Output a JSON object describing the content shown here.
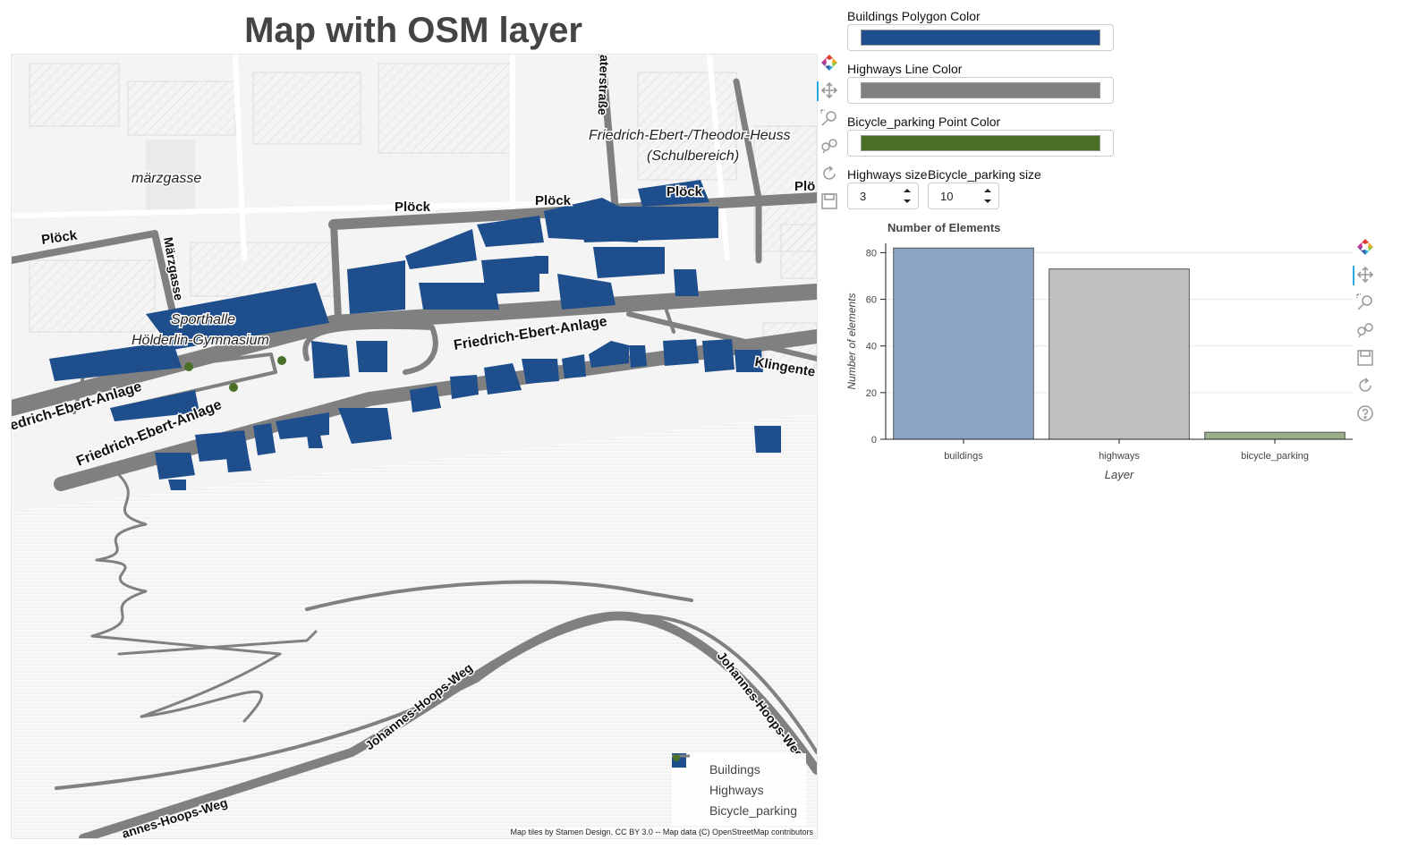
{
  "map": {
    "title": "Map with OSM layer",
    "attribution": "Map tiles by Stamen Design, CC BY 3.0 -- Map data (C) OpenStreetMap contributors",
    "street_labels": {
      "plock1": "Plöck",
      "plock2": "Plöck",
      "plock3": "Plöck",
      "plock4": "Plöck",
      "plock5": "Plö",
      "marzgasse_area": "märzgasse",
      "marzgasse_street": "Märzgasse",
      "theaterstrasse": "aterstraße",
      "fe_theodor": "Friedrich-Ebert-/Theodor-Heuss",
      "schulbereich": "(Schulbereich)",
      "sporthalle": "Sporthalle",
      "hoelderlin": "Hölderlin-Gymnasium",
      "fe_anlage_main": "Friedrich-Ebert-Anlage",
      "fe_anlage_left": "edrich-Ebert-Anlage",
      "fe_anlage_lower": "Friedrich-Ebert-Anlage",
      "klingente": "Klingente",
      "jhw1": "Johannes-Hoops-Weg",
      "jhw2": "Johannes-Hoops-Weg",
      "jhw3": "annes-Hoops-Weg"
    },
    "legend": [
      {
        "label": "Buildings",
        "color": "#1f4e8c",
        "icon": "square-icon"
      },
      {
        "label": "Highways",
        "color": "#808080",
        "icon": "line-icon"
      },
      {
        "label": "Bicycle_parking",
        "color": "#4a7028",
        "icon": "dot-icon"
      }
    ]
  },
  "toolbar_icons": [
    "bokeh-logo-icon",
    "pan-icon",
    "box-zoom-icon",
    "wheel-zoom-icon",
    "reset-icon",
    "save-icon"
  ],
  "chart_toolbar_icons": [
    "bokeh-logo-icon",
    "pan-icon",
    "box-zoom-icon",
    "wheel-zoom-icon",
    "save-icon",
    "reset-icon",
    "help-icon"
  ],
  "controls": {
    "buildings_color": {
      "label": "Buildings Polygon Color",
      "value": "#1f4e8c"
    },
    "highways_color": {
      "label": "Highways Line Color",
      "value": "#808080"
    },
    "bicycle_color": {
      "label": "Bicycle_parking Point Color",
      "value": "#4a7028"
    },
    "highways_size": {
      "label": "Highways size",
      "value": "3"
    },
    "bicycle_size": {
      "label": "Bicycle_parking size",
      "value": "10"
    }
  },
  "chart_data": {
    "type": "bar",
    "title": "Number of Elements",
    "categories": [
      "buildings",
      "highways",
      "bicycle_parking"
    ],
    "values": [
      82,
      73,
      3
    ],
    "colors": [
      "#8aa5c4",
      "#c0c0c0",
      "#9aae8a"
    ],
    "xlabel": "Layer",
    "ylabel": "Number of elements",
    "ylim": [
      0,
      84
    ],
    "yticks": [
      0,
      20,
      40,
      60,
      80
    ],
    "grid": true
  }
}
